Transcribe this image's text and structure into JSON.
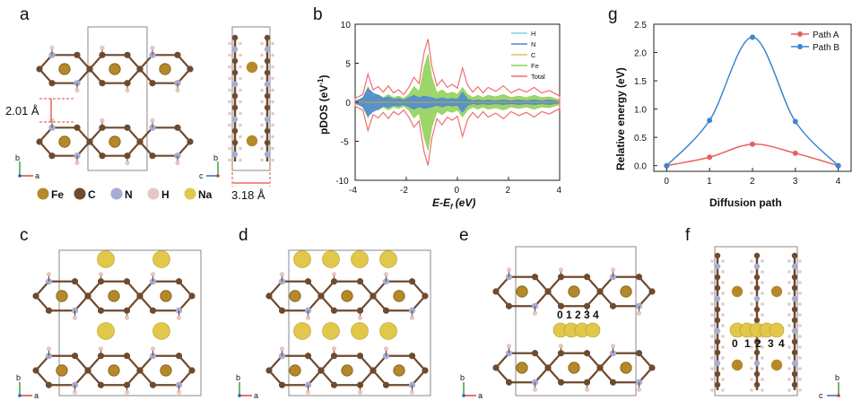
{
  "panels": {
    "a": "a",
    "b": "b",
    "c": "c",
    "d": "d",
    "e": "e",
    "f": "f",
    "g": "g"
  },
  "structure": {
    "interlayer_distance": "2.01 Å",
    "lateral_distance": "3.18 Å",
    "axes": {
      "b": "b",
      "a": "a",
      "c": "c"
    },
    "legend": [
      {
        "label": "Fe",
        "color": "#b5892a"
      },
      {
        "label": "C",
        "color": "#6e4a2e"
      },
      {
        "label": "N",
        "color": "#a7acd2"
      },
      {
        "label": "H",
        "color": "#e7c7c3"
      },
      {
        "label": "Na",
        "color": "#e2c84a"
      }
    ],
    "site_labels_e": "0 1 2 3 4",
    "site_labels_f": [
      "0",
      "1",
      "2",
      "3",
      "4"
    ]
  },
  "chart_data": [
    {
      "type": "area",
      "panel": "b",
      "xlabel": "E-E",
      "xlabel_sub": "f",
      "xlabel_unit": "(eV)",
      "ylabel": "pDOS (eV",
      "ylabel_sup": "-1",
      "ylabel_tail": ")",
      "xlim": [
        -4,
        4
      ],
      "ylim": [
        -10,
        10
      ],
      "xticks": [
        "-4",
        "-2",
        "0",
        "2",
        "4"
      ],
      "yticks": [
        "10",
        "5",
        "0",
        "-5",
        "-10"
      ],
      "legend_position": "top-right",
      "series": [
        {
          "name": "H",
          "color": "#7fd0e6"
        },
        {
          "name": "N",
          "color": "#4a86d8"
        },
        {
          "name": "C",
          "color": "#e0bf65"
        },
        {
          "name": "Fe",
          "color": "#8ccf50"
        },
        {
          "name": "Total",
          "color": "#f26d6d"
        }
      ],
      "profiles": {
        "x": [
          -4,
          -3.7,
          -3.5,
          -3.3,
          -3.1,
          -2.9,
          -2.7,
          -2.5,
          -2.3,
          -2.1,
          -1.9,
          -1.7,
          -1.5,
          -1.3,
          -1.15,
          -1.0,
          -0.8,
          -0.6,
          -0.4,
          -0.2,
          0.0,
          0.2,
          0.4,
          0.6,
          0.8,
          1.0,
          1.2,
          1.5,
          1.8,
          2.1,
          2.4,
          2.7,
          3.0,
          3.3,
          3.6,
          4.0
        ],
        "Total": [
          0.5,
          1.0,
          3.6,
          1.6,
          2.0,
          1.3,
          2.1,
          1.2,
          1.6,
          1.0,
          1.9,
          3.2,
          2.4,
          6.4,
          8.1,
          4.6,
          2.1,
          2.9,
          1.9,
          2.3,
          1.8,
          4.4,
          2.2,
          1.3,
          2.0,
          1.2,
          1.9,
          1.4,
          2.1,
          1.2,
          1.7,
          1.3,
          1.9,
          1.2,
          1.5,
          0.8
        ],
        "Fe": [
          0.2,
          0.5,
          2.0,
          0.8,
          1.0,
          0.6,
          1.0,
          0.6,
          0.8,
          0.5,
          1.0,
          2.0,
          1.4,
          4.5,
          6.2,
          3.2,
          1.2,
          1.6,
          1.1,
          1.3,
          1.0,
          1.9,
          1.0,
          0.6,
          0.9,
          0.6,
          0.9,
          0.7,
          1.0,
          0.6,
          0.8,
          0.6,
          0.9,
          0.6,
          0.7,
          0.3
        ],
        "N": [
          0.1,
          0.6,
          1.8,
          1.2,
          0.9,
          0.5,
          0.7,
          0.4,
          0.5,
          0.3,
          0.6,
          0.9,
          0.6,
          0.8,
          0.7,
          0.6,
          0.4,
          0.6,
          0.4,
          0.5,
          0.4,
          1.3,
          0.4,
          0.2,
          0.3,
          0.2,
          0.3,
          0.2,
          0.3,
          0.2,
          0.3,
          0.2,
          0.3,
          0.2,
          0.3,
          0.1
        ]
      }
    },
    {
      "type": "line",
      "panel": "g",
      "xlabel": "Diffusion path",
      "ylabel": "Relative energy (eV)",
      "x": [
        0,
        1,
        2,
        3,
        4
      ],
      "xlim": [
        -0.3,
        4.3
      ],
      "ylim": [
        -0.1,
        2.5
      ],
      "xticks": [
        "0",
        "1",
        "2",
        "3",
        "4"
      ],
      "yticks": [
        "0.0",
        "0.5",
        "1.0",
        "1.5",
        "2.0",
        "2.5"
      ],
      "legend_position": "top-right",
      "series": [
        {
          "name": "Path A",
          "color": "#e8605a",
          "values": [
            0.0,
            0.15,
            0.38,
            0.22,
            0.0
          ]
        },
        {
          "name": "Path B",
          "color": "#3d86d0",
          "values": [
            0.0,
            0.8,
            2.27,
            0.78,
            0.0
          ]
        }
      ]
    }
  ]
}
